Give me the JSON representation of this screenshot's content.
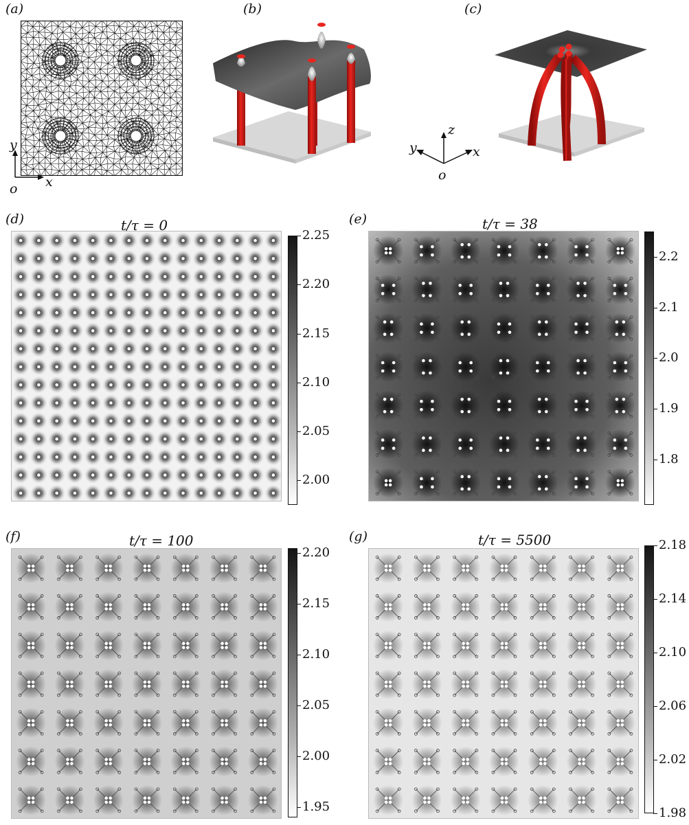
{
  "panels": {
    "a": {
      "label": "(a)",
      "axis_y": "y",
      "axis_x": "x",
      "origin": "o"
    },
    "b": {
      "label": "(b)"
    },
    "c": {
      "label": "(c)"
    },
    "axes3d": {
      "z": "z",
      "y": "y",
      "x": "x",
      "origin": "o"
    },
    "d": {
      "label": "(d)",
      "title": "t/τ = 0",
      "ticks": [
        "2.25",
        "2.20",
        "2.15",
        "2.10",
        "2.05",
        "2.00"
      ],
      "colorbar_range": [
        1.975,
        2.25
      ],
      "grid": 15
    },
    "e": {
      "label": "(e)",
      "title": "t/τ = 38",
      "ticks": [
        "2.2",
        "2.1",
        "2.0",
        "1.9",
        "1.8"
      ],
      "colorbar_range": [
        1.71,
        2.25
      ],
      "grid": 7
    },
    "f": {
      "label": "(f)",
      "title": "t/τ = 100",
      "ticks": [
        "2.20",
        "2.15",
        "2.10",
        "2.05",
        "2.00",
        "1.95"
      ],
      "colorbar_range": [
        1.94,
        2.205
      ],
      "grid": 7
    },
    "g": {
      "label": "(g)",
      "title": "t/τ = 5500",
      "ticks": [
        "2.18",
        "2.14",
        "2.10",
        "2.06",
        "2.02",
        "1.98"
      ],
      "colorbar_range": [
        1.98,
        2.18
      ],
      "grid": 7
    }
  },
  "colors": {
    "pillar": "#e0201c",
    "mesh": "#111111",
    "film": "#3c3c3c",
    "substrate": "#d6d6d6"
  }
}
